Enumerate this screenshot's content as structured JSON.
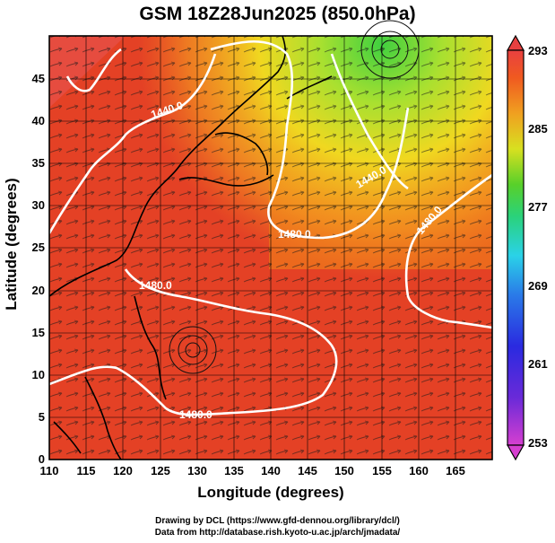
{
  "title": "GSM 18Z28Jun2025 (850.0hPa)",
  "xlabel": "Longitude (degrees)",
  "ylabel": "Latitude  (degrees)",
  "credit_line1": "Drawing by DCL (https://www.gfd-dennou.org/library/dcl/)",
  "credit_line2": "Data from http://database.rish.kyoto-u.ac.jp/arch/jmadata/",
  "x_ticks": [
    "110",
    "115",
    "120",
    "125",
    "130",
    "135",
    "140",
    "145",
    "150",
    "155",
    "160",
    "165"
  ],
  "y_ticks": [
    "0",
    "5",
    "10",
    "15",
    "20",
    "25",
    "30",
    "35",
    "40",
    "45"
  ],
  "colorbar_ticks": [
    "293",
    "285",
    "277",
    "269",
    "261",
    "253"
  ],
  "contour_labels": [
    "1440.0",
    "1440.0",
    "1480.0",
    "1480.0",
    "1480.0",
    "1480.0"
  ],
  "colors": {
    "warm": "#e83a1e",
    "hot": "#d9282a",
    "mid": "#f07a1a",
    "yellow": "#e8e020",
    "green": "#58d02a"
  }
}
